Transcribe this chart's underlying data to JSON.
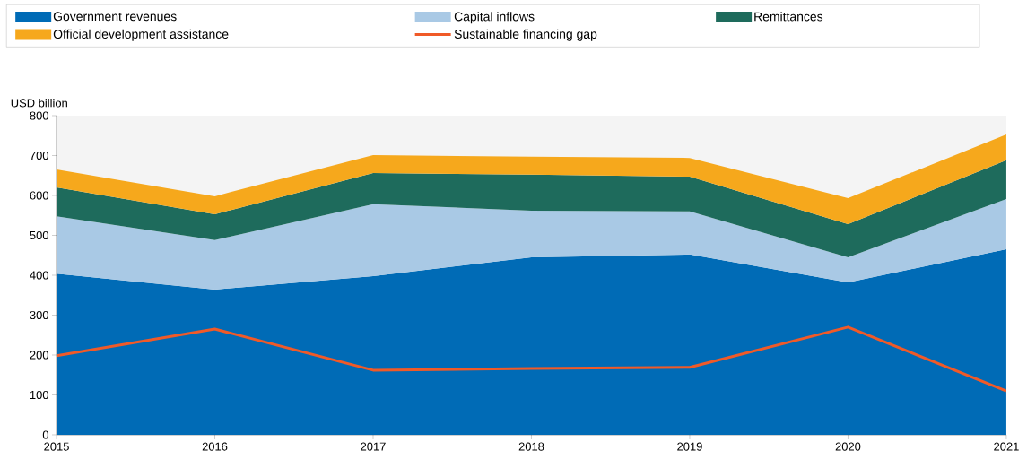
{
  "chart_data": {
    "type": "area",
    "stacked": true,
    "ylabel": "USD billion",
    "x": [
      2015,
      2016,
      2017,
      2018,
      2019,
      2020,
      2021
    ],
    "xlim": [
      2015,
      2021
    ],
    "xticks": [
      2015,
      2016,
      2017,
      2018,
      2019,
      2020,
      2021
    ],
    "ylim": [
      0,
      800
    ],
    "yticks": [
      0,
      100,
      200,
      300,
      400,
      500,
      600,
      700,
      800
    ],
    "legend": "top",
    "series": [
      {
        "name": "Government revenues",
        "color": "#006bb6",
        "values": [
          404,
          364,
          398,
          445,
          452,
          382,
          465
        ]
      },
      {
        "name": "Capital inflows",
        "color": "#a9c9e5",
        "values": [
          144,
          124,
          180,
          117,
          108,
          63,
          126
        ]
      },
      {
        "name": "Remittances",
        "color": "#1e6b5c",
        "values": [
          72,
          65,
          78,
          90,
          87,
          83,
          97
        ]
      },
      {
        "name": "Official development assistance",
        "color": "#f6a81c",
        "values": [
          45,
          45,
          45,
          45,
          47,
          65,
          65
        ]
      },
      {
        "name": "Sustainable financing gap",
        "type": "line",
        "color": "#f05a28",
        "values": [
          198,
          265,
          162,
          166,
          169,
          270,
          110
        ]
      }
    ]
  }
}
